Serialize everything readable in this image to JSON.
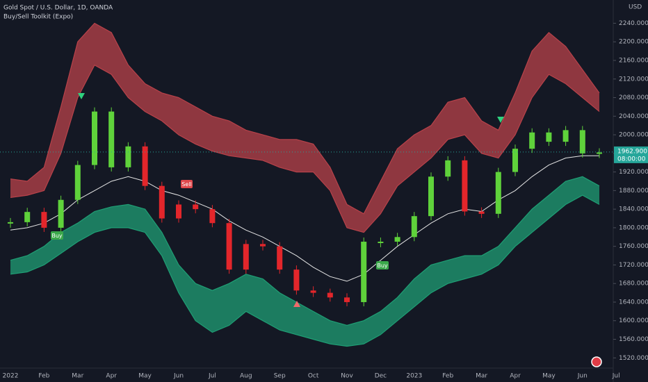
{
  "chart_data": {
    "type": "candlestick",
    "title": "Gold Spot / U.S. Dollar, 1D, OANDA",
    "subtitle": "Buy/Sell Toolkit (Expo)",
    "y_axis_label": "USD",
    "last_price": {
      "value": 1962.9,
      "label": "1962.900"
    },
    "countdown": "08:00:00",
    "categories": [
      "2022",
      null,
      "Feb",
      null,
      "Mar",
      null,
      "Apr",
      null,
      "May",
      null,
      "Jun",
      null,
      "Jul",
      null,
      "Aug",
      null,
      "Sep",
      null,
      "Oct",
      null,
      "Nov",
      null,
      "Dec",
      null,
      "2023",
      null,
      "Feb",
      null,
      "Mar",
      null,
      "Apr",
      null,
      "May",
      null,
      "Jun",
      null,
      "Jul"
    ],
    "series": [
      {
        "up_color": "#5fd23b",
        "down_color": "#e3262b",
        "values": [
          1812,
          1834,
          1800,
          1860,
          1935,
          2050,
          1930,
          1975,
          1890,
          1820,
          1850,
          1840,
          1810,
          1710,
          1765,
          1760,
          1710,
          1665,
          1660,
          1650,
          1640,
          1770,
          1770,
          1780,
          1825,
          1910,
          1945,
          1835,
          1830,
          1920,
          1970,
          2005,
          1985,
          2010,
          1960,
          1962,
          null
        ]
      },
      {
        "color": "#e6e6e6",
        "values": [
          1795,
          1800,
          1810,
          1830,
          1860,
          1880,
          1900,
          1910,
          1900,
          1880,
          1870,
          1855,
          1840,
          1815,
          1795,
          1780,
          1760,
          1740,
          1715,
          1695,
          1685,
          1700,
          1730,
          1760,
          1785,
          1810,
          1830,
          1840,
          1835,
          1860,
          1880,
          1910,
          1935,
          1950,
          1955,
          1955,
          null
        ]
      },
      {
        "color": "#b8424a",
        "values": [
          1905,
          1900,
          1930,
          2060,
          2200,
          2240,
          2220,
          2150,
          2110,
          2090,
          2080,
          2060,
          2040,
          2030,
          2010,
          2000,
          1990,
          1990,
          1980,
          1930,
          1850,
          1830,
          1900,
          1970,
          2000,
          2020,
          2070,
          2080,
          2030,
          2010,
          2090,
          2180,
          2220,
          2190,
          2140,
          2090,
          null
        ]
      },
      {
        "color": "#b8424a",
        "values": [
          1865,
          1870,
          1880,
          1960,
          2080,
          2150,
          2130,
          2080,
          2050,
          2030,
          2000,
          1980,
          1965,
          1955,
          1950,
          1945,
          1930,
          1920,
          1920,
          1880,
          1800,
          1790,
          1830,
          1890,
          1920,
          1950,
          1990,
          2000,
          1960,
          1950,
          2000,
          2080,
          2130,
          2110,
          2080,
          2050,
          null
        ]
      },
      {
        "color": "#1f9e74",
        "values": [
          1730,
          1740,
          1760,
          1790,
          1810,
          1835,
          1845,
          1850,
          1840,
          1790,
          1720,
          1680,
          1665,
          1680,
          1700,
          1690,
          1660,
          1640,
          1620,
          1600,
          1590,
          1600,
          1620,
          1650,
          1690,
          1720,
          1730,
          1740,
          1740,
          1760,
          1800,
          1840,
          1870,
          1900,
          1910,
          1890,
          null
        ]
      },
      {
        "color": "#1f9e74",
        "values": [
          1700,
          1705,
          1720,
          1745,
          1770,
          1790,
          1800,
          1800,
          1790,
          1740,
          1660,
          1600,
          1575,
          1590,
          1620,
          1600,
          1580,
          1570,
          1560,
          1550,
          1545,
          1550,
          1570,
          1600,
          1630,
          1660,
          1680,
          1690,
          1700,
          1720,
          1760,
          1790,
          1820,
          1850,
          1870,
          1850,
          null
        ]
      }
    ],
    "annotations": [
      "Buy",
      "Sell",
      "Buy"
    ],
    "ylim": [
      1498,
      2290
    ],
    "yticks": [
      {
        "value": 2240,
        "label": "2240.000"
      },
      {
        "value": 2200,
        "label": "2200.000"
      },
      {
        "value": 2160,
        "label": "2160.000"
      },
      {
        "value": 2120,
        "label": "2120.000"
      },
      {
        "value": 2080,
        "label": "2080.000"
      },
      {
        "value": 2040,
        "label": "2040.000"
      },
      {
        "value": 2000,
        "label": "2000.000"
      },
      {
        "value": 1960,
        "label": "1960.000"
      },
      {
        "value": 1920,
        "label": "1920.000"
      },
      {
        "value": 1880,
        "label": "1880.000"
      },
      {
        "value": 1840,
        "label": "1840.000"
      },
      {
        "value": 1800,
        "label": "1800.000"
      },
      {
        "value": 1760,
        "label": "1760.000"
      },
      {
        "value": 1720,
        "label": "1720.000"
      },
      {
        "value": 1680,
        "label": "1680.000"
      },
      {
        "value": 1640,
        "label": "1640.000"
      },
      {
        "value": 1600,
        "label": "1600.000"
      },
      {
        "value": 1560,
        "label": "1560.000"
      },
      {
        "value": 1520,
        "label": "1520.000"
      }
    ],
    "grid": false
  }
}
